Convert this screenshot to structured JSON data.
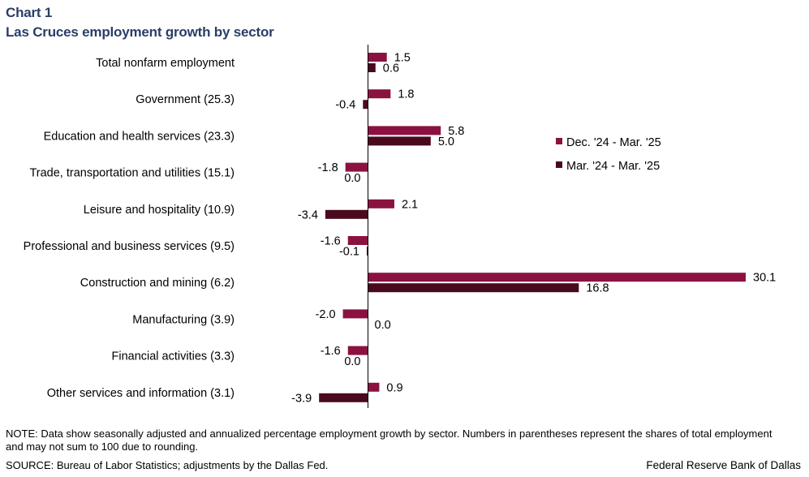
{
  "header": {
    "chart_label": "Chart 1",
    "title": "Las Cruces employment growth by sector"
  },
  "chart_data": {
    "type": "bar",
    "orientation": "horizontal",
    "title": "Las Cruces employment growth by sector",
    "categories": [
      "Total nonfarm employment",
      "Government (25.3)",
      "Education and health services (23.3)",
      "Trade, transportation and utilities (15.1)",
      "Leisure and hospitality (10.9)",
      "Professional and business services (9.5)",
      "Construction and mining (6.2)",
      "Manufacturing (3.9)",
      "Financial activities (3.3)",
      "Other services and information (3.1)"
    ],
    "series": [
      {
        "name": "Dec. '24 - Mar. '25",
        "color": "#8b1240",
        "values": [
          1.5,
          1.8,
          5.8,
          -1.8,
          2.1,
          -1.6,
          30.1,
          -2.0,
          -1.6,
          0.9
        ],
        "labels": [
          "1.5",
          "1.8",
          "5.8",
          "-1.8",
          "2.1",
          "-1.6",
          "30.1",
          "-2.0",
          "-1.6",
          "0.9"
        ]
      },
      {
        "name": "Mar. '24 - Mar. '25",
        "color": "#4a0a1e",
        "values": [
          0.6,
          -0.4,
          5.0,
          0.0,
          -3.4,
          -0.1,
          16.8,
          0.0,
          0.0,
          -3.9
        ],
        "labels": [
          "0.6",
          "-0.4",
          "5.0",
          "0.0",
          "-3.4",
          "-0.1",
          "16.8",
          "0.0",
          "0.0",
          "-3.9"
        ]
      }
    ],
    "xlim": [
      -4,
      30.1
    ],
    "legend_position": "right, upper-middle",
    "grid": false
  },
  "footer": {
    "note": "NOTE: Data show seasonally adjusted and annualized percentage employment growth by sector. Numbers in parentheses represent the shares of total employment and may not sum to 100 due to rounding.",
    "source": "SOURCE: Bureau of Labor Statistics; adjustments by the Dallas Fed.",
    "credit": "Federal Reserve Bank of Dallas"
  }
}
